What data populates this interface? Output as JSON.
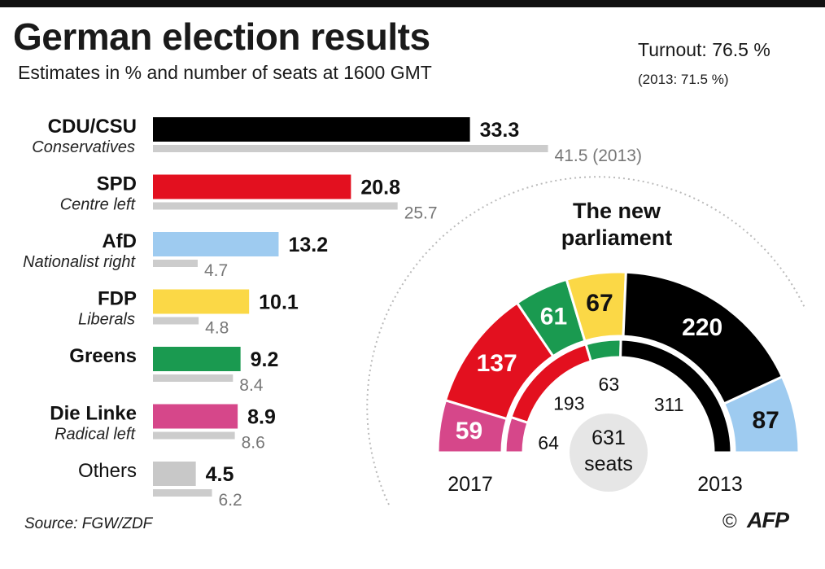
{
  "header": {
    "title": "German election results",
    "subtitle": "Estimates in % and number of seats at 1600 GMT",
    "turnout": "Turnout: 76.5 %",
    "turnout_2013": "(2013: 71.5 %)"
  },
  "footer": {
    "source": "Source: FGW/ZDF",
    "copyright": "©",
    "agency": "AFP"
  },
  "chart_data": [
    {
      "type": "bar",
      "title": "German election results",
      "subtitle": "Estimates in % and number of seats at 1600 GMT",
      "series": [
        {
          "name": "2017",
          "values": [
            33.3,
            20.8,
            13.2,
            10.1,
            9.2,
            8.9,
            4.5
          ]
        },
        {
          "name": "2013",
          "values": [
            41.5,
            25.7,
            4.7,
            4.8,
            8.4,
            8.6,
            6.2
          ]
        }
      ],
      "categories": [
        "CDU/CSU",
        "SPD",
        "AfD",
        "FDP",
        "Greens",
        "Die Linke",
        "Others"
      ],
      "descriptions": [
        "Conservatives",
        "Centre left",
        "Nationalist right",
        "Liberals",
        "",
        "Radical left",
        ""
      ],
      "value_labels_2017": [
        "33.3",
        "20.8",
        "13.2",
        "10.1",
        "9.2",
        "8.9",
        "4.5"
      ],
      "value_labels_2013": [
        "41.5 (2013)",
        "25.7",
        "4.7",
        "4.8",
        "8.4",
        "8.6",
        "6.2"
      ],
      "colors": [
        "#000000",
        "#e3101f",
        "#9ecbf0",
        "#fbd846",
        "#1a9a50",
        "#d6478a",
        "#c8c8c8"
      ],
      "color_2013": "#cccccc",
      "xlim": [
        0,
        45
      ]
    },
    {
      "type": "pie",
      "title": "The new parliament",
      "total_seats": 631,
      "total_label": "631",
      "total_unit": "seats",
      "inner_label": "2013",
      "outer_label": "2017",
      "parties_2017": [
        {
          "party": "Die Linke",
          "seats": 59,
          "color": "#d6478a"
        },
        {
          "party": "SPD",
          "seats": 137,
          "color": "#e3101f"
        },
        {
          "party": "Greens",
          "seats": 61,
          "color": "#1a9a50"
        },
        {
          "party": "FDP",
          "seats": 67,
          "color": "#fbd846"
        },
        {
          "party": "CDU/CSU",
          "seats": 220,
          "color": "#000000"
        },
        {
          "party": "AfD",
          "seats": 87,
          "color": "#9ecbf0"
        }
      ],
      "parties_2013": [
        {
          "party": "Die Linke",
          "seats": 64,
          "color": "#d6478a"
        },
        {
          "party": "SPD",
          "seats": 193,
          "color": "#e3101f"
        },
        {
          "party": "Greens",
          "seats": 63,
          "color": "#1a9a50"
        },
        {
          "party": "CDU/CSU",
          "seats": 311,
          "color": "#000000"
        }
      ]
    }
  ]
}
